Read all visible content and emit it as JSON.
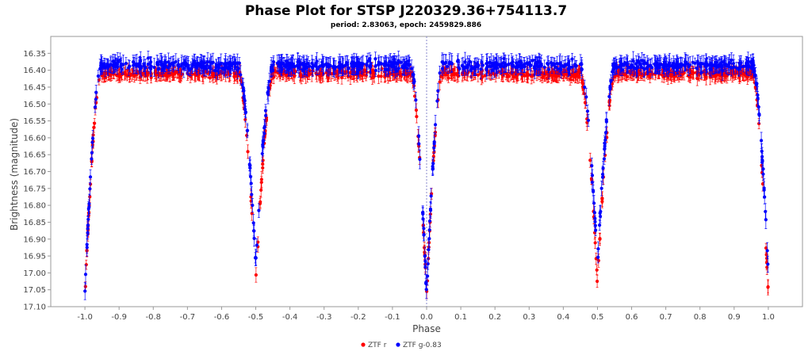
{
  "chart_data": {
    "type": "scatter",
    "title": "Phase Plot for STSP J220329.36+754113.7",
    "subtitle": "period: 2.83063, epoch: 2459829.886",
    "xlabel": "Phase",
    "ylabel": "Brightness (magnitude)",
    "xlim": [
      -1.1,
      1.1
    ],
    "ylim": [
      16.3,
      17.1
    ],
    "y_inverted": true,
    "x_ticks": [
      -1.0,
      -0.9,
      -0.8,
      -0.7,
      -0.6,
      -0.5,
      -0.4,
      -0.3,
      -0.2,
      -0.1,
      0.0,
      0.1,
      0.2,
      0.3,
      0.4,
      0.5,
      0.6,
      0.7,
      0.8,
      0.9,
      1.0
    ],
    "x_tick_labels": [
      "-1.0",
      "-0.9",
      "-0.8",
      "-0.7",
      "-0.6",
      "-0.5",
      "-0.4",
      "-0.3",
      "-0.2",
      "-0.1",
      "0.0",
      "0.1",
      "0.2",
      "0.3",
      "0.4",
      "0.5",
      "0.6",
      "0.7",
      "0.8",
      "0.9",
      "1.0"
    ],
    "y_ticks": [
      16.35,
      16.4,
      16.45,
      16.5,
      16.55,
      16.6,
      16.65,
      16.7,
      16.75,
      16.8,
      16.85,
      16.9,
      16.95,
      17.0,
      17.05,
      17.1
    ],
    "y_tick_labels": [
      "16.35",
      "16.40",
      "16.45",
      "16.50",
      "16.55",
      "16.60",
      "16.65",
      "16.70",
      "16.75",
      "16.80",
      "16.85",
      "16.90",
      "16.95",
      "17.00",
      "17.05",
      "17.10"
    ],
    "grid": false,
    "reference_line_x": 0.0,
    "legend_position": "bottom-center",
    "colors": {
      "ztf_r": "#ff0000",
      "ztf_g": "#0000ff",
      "reference_line": "#8888cc"
    },
    "series": [
      {
        "name": "ZTF r",
        "color": "#ff0000",
        "marker": "circle",
        "baseline": 16.41,
        "scatter": 0.02,
        "error": 0.018,
        "eclipses": [
          {
            "phase": -1.0,
            "depth": 17.07,
            "width": 0.045
          },
          {
            "phase": -0.5,
            "depth": 17.03,
            "width": 0.05
          },
          {
            "phase": 0.0,
            "depth": 17.07,
            "width": 0.045
          },
          {
            "phase": 0.5,
            "depth": 17.03,
            "width": 0.05
          },
          {
            "phase": 1.0,
            "depth": 17.07,
            "width": 0.045
          }
        ]
      },
      {
        "name": "ZTF g-0.83",
        "color": "#0000ff",
        "marker": "circle",
        "baseline": 16.385,
        "scatter": 0.025,
        "error": 0.022,
        "eclipses": [
          {
            "phase": -1.0,
            "depth": 17.06,
            "width": 0.045
          },
          {
            "phase": -0.5,
            "depth": 16.97,
            "width": 0.05
          },
          {
            "phase": 0.0,
            "depth": 17.07,
            "width": 0.045
          },
          {
            "phase": 0.5,
            "depth": 16.97,
            "width": 0.05
          },
          {
            "phase": 1.0,
            "depth": 17.0,
            "width": 0.045
          }
        ]
      }
    ],
    "legend": [
      {
        "label": "ZTF r",
        "color": "#ff0000"
      },
      {
        "label": "ZTF g-0.83",
        "color": "#0000ff"
      }
    ]
  }
}
